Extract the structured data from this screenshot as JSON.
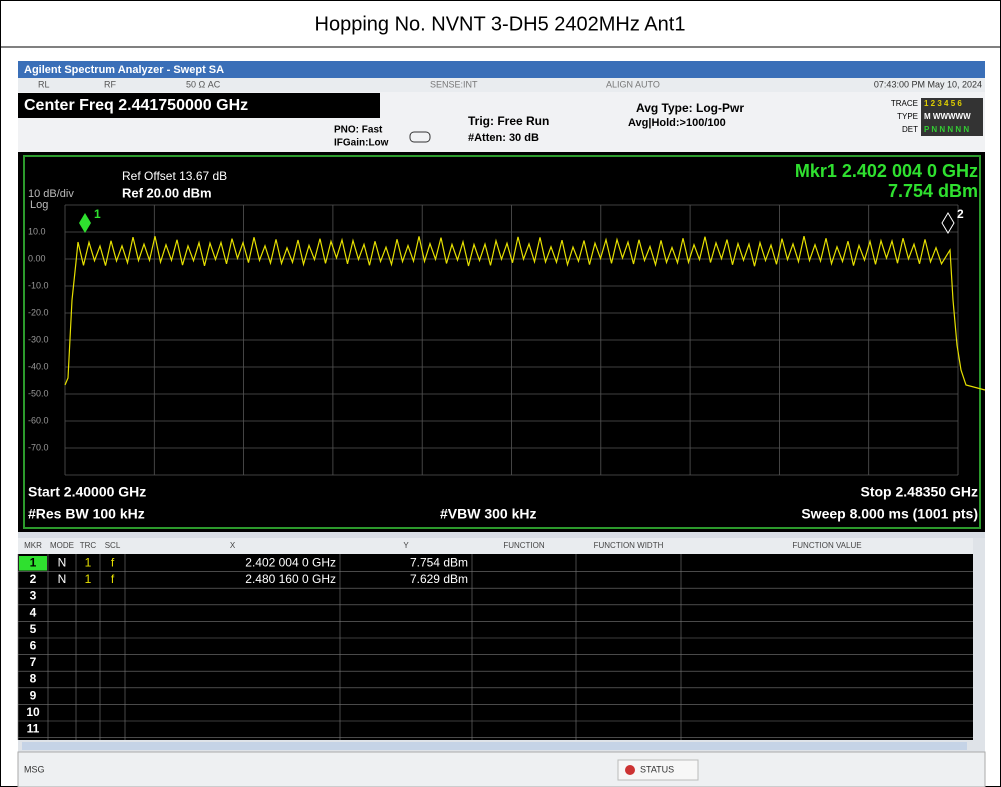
{
  "title": "Hopping No. NVNT 3-DH5 2402MHz Ant1",
  "window_title": "Agilent Spectrum Analyzer - Swept SA",
  "status_bar": {
    "rl": "RL",
    "rf": "RF",
    "impedance": "50 Ω  AC",
    "sense": "SENSE:INT",
    "align": "ALIGN AUTO",
    "datetime": "07:43:00 PM May 10, 2024"
  },
  "settings": {
    "center_freq": "Center Freq 2.441750000 GHz",
    "pno": "PNO: Fast",
    "if_gain": "IFGain:Low",
    "trig": "Trig: Free Run",
    "atten": "#Atten: 30 dB",
    "avg_type": "Avg Type: Log-Pwr",
    "avg_hold": "Avg|Hold:>100/100",
    "trace_label": "TRACE",
    "type_label": "TYPE",
    "det_label": "DET",
    "trace_nums": "1 2 3 4 5 6",
    "type_value": "M WWWWW",
    "det_value": "P N N N N N"
  },
  "screen": {
    "ref_offset": "Ref Offset 13.67 dB",
    "scale": "10 dB/div",
    "ref_level": "Ref 20.00 dBm",
    "log": "Log",
    "marker_freq": "Mkr1 2.402 004 0 GHz",
    "marker_level": "7.754 dBm",
    "y_labels": [
      "10.0",
      "0.00",
      "-10.0",
      "-20.0",
      "-30.0",
      "-40.0",
      "-50.0",
      "-60.0",
      "-70.0"
    ],
    "marker_labels": [
      "1",
      "2"
    ],
    "start": "Start 2.40000 GHz",
    "stop": "Stop 2.48350 GHz",
    "rbw": "#Res BW 100 kHz",
    "vbw": "#VBW 300 kHz",
    "sweep": "Sweep  8.000 ms (1001 pts)"
  },
  "marker_table": {
    "headers": [
      "MKR",
      "MODE",
      "TRC",
      "SCL",
      "X",
      "Y",
      "FUNCTION",
      "FUNCTION WIDTH",
      "FUNCTION VALUE"
    ],
    "rows": [
      [
        "1",
        "N",
        "1",
        "f",
        "2.402 004 0 GHz",
        "7.754 dBm"
      ],
      [
        "2",
        "N",
        "1",
        "f",
        "2.480 160 0 GHz",
        "7.629 dBm"
      ],
      [
        "3"
      ],
      [
        "4"
      ],
      [
        "5"
      ],
      [
        "6"
      ],
      [
        "7"
      ],
      [
        "8"
      ],
      [
        "9"
      ],
      [
        "10"
      ],
      [
        "11"
      ]
    ]
  },
  "footer": {
    "msg": "MSG",
    "status": "STATUS"
  }
}
